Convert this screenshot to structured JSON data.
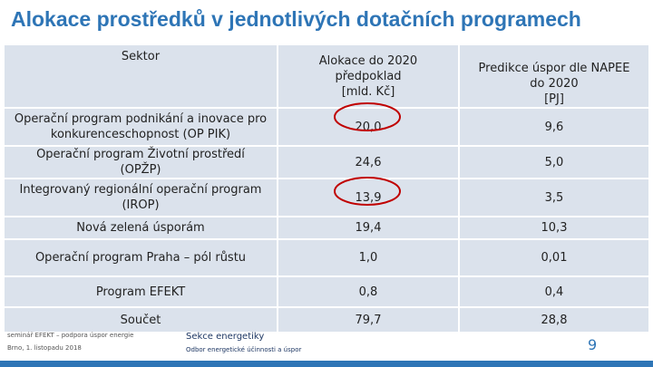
{
  "title": "Alokace prostředků v jednotlivých dotačních programech",
  "table": {
    "header": [
      "Sektor",
      "Alokace do 2020\npředpoklad\n[mld. Kč]",
      "Predikce úspor dle NAPEE\ndo 2020\n[PJ]"
    ],
    "rows": [
      [
        "Operační program podnikání a inovace pro\nkonkurenceschopnost (OP PIK)",
        "20,0",
        "9,6"
      ],
      [
        "Operační program Životní prostředí\n(OPŽP)",
        "24,6",
        "5,0"
      ],
      [
        "Integrovaný regionální operační program\n(IROP)",
        "13,9",
        "3,5"
      ],
      [
        "Nová zelená úsporám",
        "19,4",
        "10,3"
      ],
      [
        "Operační program Praha – pól růstu",
        "1,0",
        "0,01"
      ],
      [
        "Program EFEKT",
        "0,8",
        "0,4"
      ],
      [
        "Součet",
        "79,7",
        "28,8"
      ]
    ]
  },
  "footer": {
    "event": "seminář EFEKT – podpora úspor energie",
    "date": "Brno, 1. listopadu 2018",
    "section": "Sekce energetiky",
    "department": "Odbor energetické účinnosti a úspor",
    "page": "9"
  }
}
